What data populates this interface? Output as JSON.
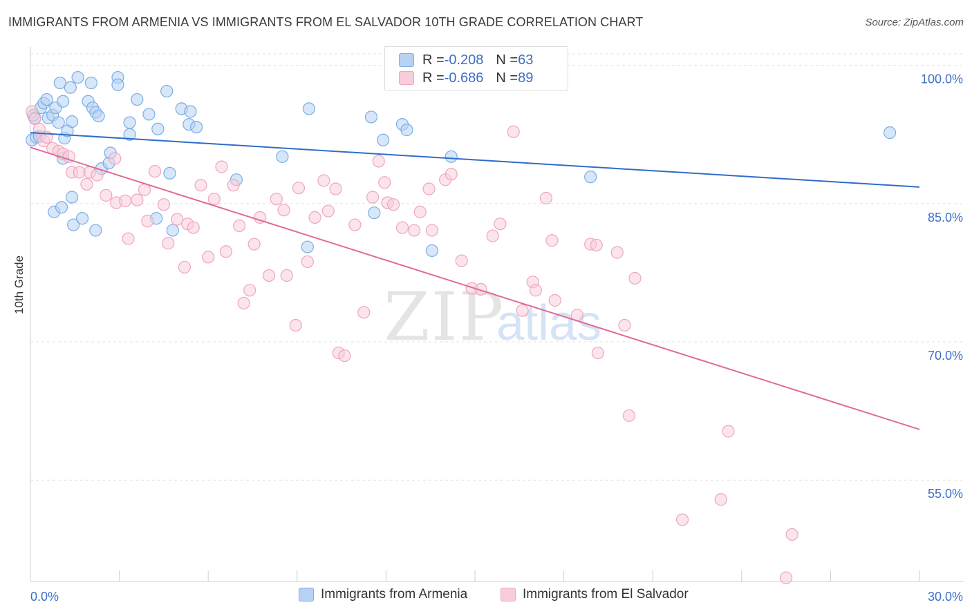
{
  "title": "IMMIGRANTS FROM ARMENIA VS IMMIGRANTS FROM EL SALVADOR 10TH GRADE CORRELATION CHART",
  "source": "Source: ZipAtlas.com",
  "watermark": {
    "zip": "ZIP",
    "atlas": "atlas"
  },
  "colors": {
    "blue": "#7aaee6",
    "blue_fill": "#b7d2f3",
    "blue_line": "#2f6ccc",
    "pink": "#f0a5bd",
    "pink_fill": "#f8cdda",
    "pink_line": "#e06a96",
    "axis_label": "#3d6fc7"
  },
  "legend": {
    "armenia": {
      "r_label": "R = ",
      "r_value": "-0.208",
      "n_label": "N = ",
      "n_value": "63"
    },
    "el_salvador": {
      "r_label": "R = ",
      "r_value": "-0.686",
      "n_label": "N = ",
      "n_value": "89"
    }
  },
  "chart_data": {
    "type": "scatter",
    "title": "IMMIGRANTS FROM ARMENIA VS IMMIGRANTS FROM EL SALVADOR 10TH GRADE CORRELATION CHART",
    "xlabel": "",
    "ylabel": "10th Grade",
    "xlim": [
      0,
      30
    ],
    "ylim": [
      44,
      102
    ],
    "x_tick_labels": [
      "0.0%",
      "30.0%"
    ],
    "y_ticks": [
      55,
      70,
      85,
      100
    ],
    "y_tick_labels": [
      "55.0%",
      "70.0%",
      "85.0%",
      "100.0%"
    ],
    "legend_position": "bottom",
    "series": [
      {
        "name": "Immigrants from Armenia",
        "color": "#7aaee6",
        "trend": {
          "x": [
            0,
            30
          ],
          "y": [
            92.7,
            86.8
          ]
        },
        "points": [
          [
            0.05,
            91.9
          ],
          [
            0.15,
            94.3
          ],
          [
            0.2,
            92.2
          ],
          [
            0.35,
            95.4
          ],
          [
            0.45,
            95.9
          ],
          [
            0.55,
            96.3
          ],
          [
            0.6,
            94.3
          ],
          [
            0.75,
            94.6
          ],
          [
            0.85,
            95.4
          ],
          [
            0.95,
            93.8
          ],
          [
            1.0,
            98.1
          ],
          [
            1.1,
            96.1
          ],
          [
            1.15,
            92.1
          ],
          [
            1.25,
            92.9
          ],
          [
            1.35,
            97.6
          ],
          [
            1.4,
            93.9
          ],
          [
            1.6,
            98.7
          ],
          [
            1.95,
            96.1
          ],
          [
            2.05,
            98.1
          ],
          [
            2.1,
            95.4
          ],
          [
            2.2,
            94.9
          ],
          [
            2.3,
            94.5
          ],
          [
            2.95,
            98.7
          ],
          [
            2.95,
            97.9
          ],
          [
            3.35,
            93.8
          ],
          [
            3.35,
            92.5
          ],
          [
            3.6,
            96.3
          ],
          [
            4.0,
            94.7
          ],
          [
            4.3,
            93.1
          ],
          [
            4.6,
            97.2
          ],
          [
            5.1,
            95.3
          ],
          [
            5.35,
            93.6
          ],
          [
            5.4,
            95.0
          ],
          [
            5.6,
            93.3
          ],
          [
            0.1,
            94.6
          ],
          [
            0.3,
            92.3
          ],
          [
            1.1,
            89.9
          ],
          [
            1.4,
            85.7
          ],
          [
            0.8,
            84.1
          ],
          [
            1.05,
            84.6
          ],
          [
            1.45,
            82.7
          ],
          [
            1.75,
            83.4
          ],
          [
            2.2,
            82.1
          ],
          [
            2.4,
            88.8
          ],
          [
            2.65,
            89.4
          ],
          [
            2.7,
            90.5
          ],
          [
            4.25,
            83.4
          ],
          [
            4.7,
            88.3
          ],
          [
            4.8,
            82.1
          ],
          [
            6.95,
            87.6
          ],
          [
            8.5,
            90.1
          ],
          [
            9.35,
            80.3
          ],
          [
            9.4,
            95.3
          ],
          [
            11.5,
            94.4
          ],
          [
            11.6,
            84.0
          ],
          [
            11.9,
            91.9
          ],
          [
            12.55,
            93.6
          ],
          [
            12.7,
            93.0
          ],
          [
            13.55,
            79.9
          ],
          [
            14.2,
            90.1
          ],
          [
            18.9,
            87.9
          ],
          [
            29.0,
            92.7
          ]
        ]
      },
      {
        "name": "Immigrants from El Salvador",
        "color": "#f0a5bd",
        "trend": {
          "x": [
            0,
            30
          ],
          "y": [
            91.1,
            60.5
          ]
        },
        "points": [
          [
            0.05,
            95.0
          ],
          [
            0.15,
            94.2
          ],
          [
            0.3,
            93.1
          ],
          [
            0.45,
            91.8
          ],
          [
            0.55,
            92.2
          ],
          [
            0.75,
            91.0
          ],
          [
            0.95,
            90.7
          ],
          [
            1.1,
            90.4
          ],
          [
            1.3,
            90.1
          ],
          [
            1.4,
            88.4
          ],
          [
            1.65,
            88.4
          ],
          [
            1.9,
            87.1
          ],
          [
            2.0,
            88.4
          ],
          [
            2.25,
            88.1
          ],
          [
            2.55,
            85.9
          ],
          [
            2.85,
            89.9
          ],
          [
            2.9,
            85.1
          ],
          [
            3.2,
            85.3
          ],
          [
            3.3,
            81.2
          ],
          [
            3.6,
            85.4
          ],
          [
            3.85,
            86.5
          ],
          [
            3.95,
            83.1
          ],
          [
            4.2,
            88.5
          ],
          [
            4.5,
            84.9
          ],
          [
            4.65,
            80.7
          ],
          [
            4.95,
            83.3
          ],
          [
            5.2,
            78.1
          ],
          [
            5.3,
            82.8
          ],
          [
            5.5,
            82.4
          ],
          [
            5.75,
            87.0
          ],
          [
            6.0,
            79.2
          ],
          [
            6.2,
            85.5
          ],
          [
            6.45,
            89.0
          ],
          [
            6.6,
            79.8
          ],
          [
            6.85,
            87.0
          ],
          [
            7.05,
            82.6
          ],
          [
            7.2,
            74.2
          ],
          [
            7.4,
            75.6
          ],
          [
            7.55,
            80.6
          ],
          [
            7.75,
            83.5
          ],
          [
            8.05,
            77.2
          ],
          [
            8.3,
            85.5
          ],
          [
            8.55,
            84.3
          ],
          [
            8.65,
            77.2
          ],
          [
            8.95,
            71.8
          ],
          [
            9.05,
            86.7
          ],
          [
            9.35,
            78.7
          ],
          [
            9.6,
            83.5
          ],
          [
            9.9,
            87.5
          ],
          [
            10.05,
            84.2
          ],
          [
            10.3,
            86.6
          ],
          [
            10.4,
            68.8
          ],
          [
            10.6,
            68.5
          ],
          [
            10.95,
            82.7
          ],
          [
            11.25,
            73.2
          ],
          [
            11.55,
            85.7
          ],
          [
            11.75,
            89.6
          ],
          [
            11.95,
            87.3
          ],
          [
            12.05,
            85.1
          ],
          [
            12.25,
            84.9
          ],
          [
            12.55,
            82.4
          ],
          [
            12.95,
            82.1
          ],
          [
            13.15,
            84.1
          ],
          [
            13.45,
            86.6
          ],
          [
            13.55,
            82.1
          ],
          [
            14.0,
            87.6
          ],
          [
            14.2,
            88.2
          ],
          [
            14.55,
            78.8
          ],
          [
            14.9,
            75.8
          ],
          [
            15.2,
            75.7
          ],
          [
            15.6,
            81.5
          ],
          [
            15.85,
            82.8
          ],
          [
            16.3,
            92.8
          ],
          [
            16.6,
            73.4
          ],
          [
            16.95,
            76.5
          ],
          [
            17.05,
            75.6
          ],
          [
            17.4,
            85.6
          ],
          [
            17.6,
            81.0
          ],
          [
            17.7,
            74.5
          ],
          [
            18.45,
            72.9
          ],
          [
            18.9,
            80.6
          ],
          [
            19.1,
            80.5
          ],
          [
            19.15,
            68.8
          ],
          [
            19.8,
            79.7
          ],
          [
            20.05,
            71.8
          ],
          [
            20.4,
            76.9
          ],
          [
            20.2,
            62.0
          ],
          [
            22.0,
            50.7
          ],
          [
            23.55,
            60.3
          ],
          [
            23.3,
            52.9
          ],
          [
            25.7,
            49.1
          ],
          [
            25.5,
            44.4
          ]
        ]
      }
    ]
  },
  "bottom_legend": {
    "armenia": "Immigrants from Armenia",
    "el_salvador": "Immigrants from El Salvador"
  }
}
